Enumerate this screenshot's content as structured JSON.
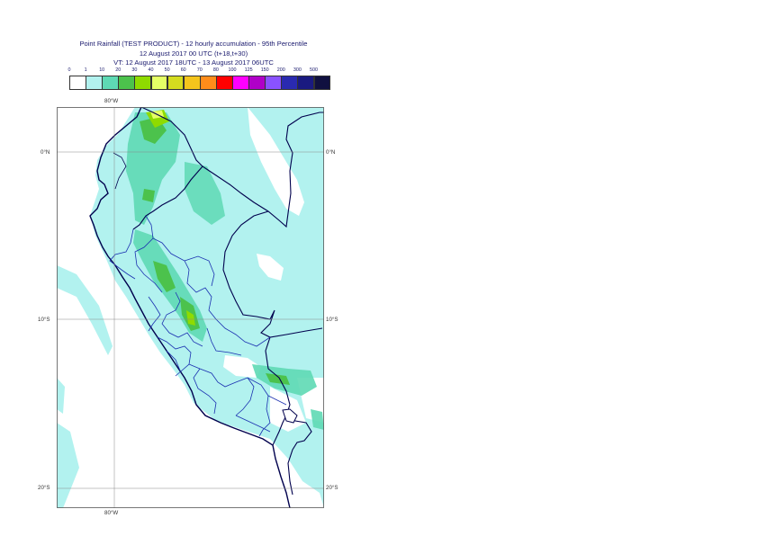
{
  "title": {
    "line1": "Point Rainfall (TEST PRODUCT) - 12 hourly accumulation - 95th Percentile",
    "line2": "12 August 2017 00 UTC (t+18,t+30)",
    "line3": "VT: 12 August 2017 18UTC - 13 August 2017 06UTC"
  },
  "legend": {
    "ticks": [
      "0",
      "1",
      "10",
      "20",
      "30",
      "40",
      "50",
      "60",
      "70",
      "80",
      "100",
      "125",
      "150",
      "200",
      "300",
      "500"
    ],
    "colors": [
      "#ffffff",
      "#b2f2ef",
      "#5ed9b4",
      "#4cc24c",
      "#8fdb00",
      "#e5ff66",
      "#d4dc1f",
      "#f4c41c",
      "#ff8c1a",
      "#ff0000",
      "#ff00ff",
      "#b000c8",
      "#8a52ff",
      "#2a2ab0",
      "#1a1a80",
      "#101040"
    ]
  },
  "map": {
    "lat_labels": {
      "n0_left": "0°N",
      "n0_right": "0°N",
      "s10_left": "10°S",
      "s10_right": "10°S",
      "s20_left": "20°S",
      "s20_right": "20°S"
    },
    "lon_labels": {
      "top": "80°W",
      "bottom": "80°W"
    }
  }
}
